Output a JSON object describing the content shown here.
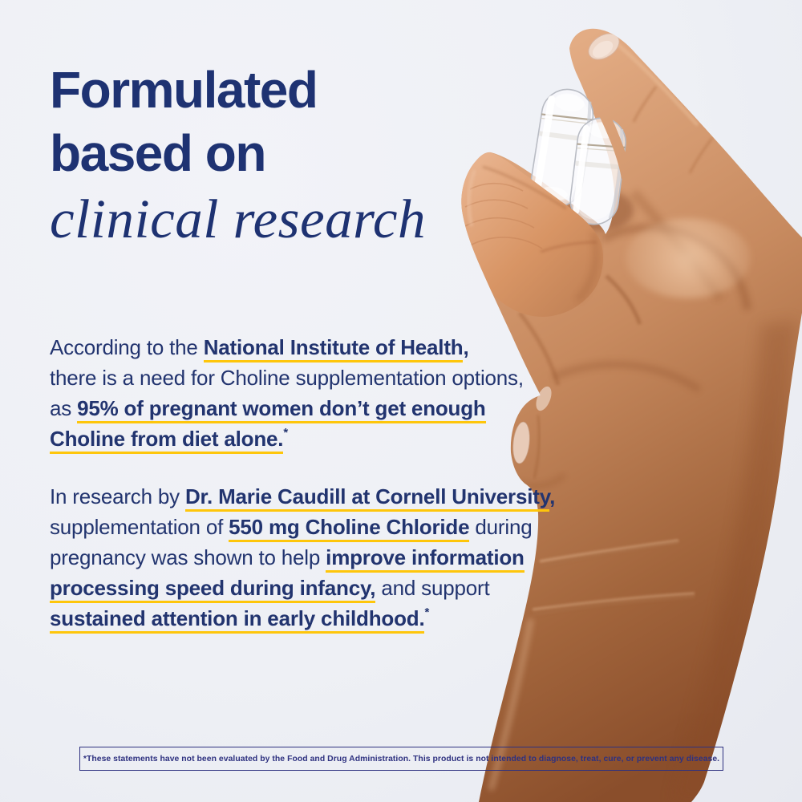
{
  "colors": {
    "background": "#eef0f5",
    "heading_navy": "#1e3272",
    "body_navy": "#22346f",
    "underline_yellow": "#fec60b",
    "disclaimer_navy": "#2e3180",
    "skin_light": "#e3ac84",
    "skin_mid": "#c78a5f",
    "skin_deep": "#a2653c",
    "skin_shadow": "#8a4e2b",
    "nail": "#eed7c8",
    "capsule_outline": "#b9bcc4"
  },
  "heading": {
    "line1": "Formulated",
    "line2": "based on",
    "line3": "clinical research"
  },
  "paragraphs": [
    {
      "lines": [
        [
          {
            "t": "According to the "
          },
          {
            "t": "National Institute of Health",
            "b": true,
            "u": true
          },
          {
            "t": ",",
            "b": true
          }
        ],
        [
          {
            "t": "there is a need for Choline supplementation options,"
          }
        ],
        [
          {
            "t": "as "
          },
          {
            "t": "95% of pregnant women don’t get enough",
            "b": true,
            "u": true
          }
        ],
        [
          {
            "t": "Choline from diet alone.",
            "b": true,
            "u": true
          },
          {
            "t": "*",
            "b": true,
            "sup": true
          }
        ]
      ]
    },
    {
      "lines": [
        [
          {
            "t": "In research by "
          },
          {
            "t": "Dr. Marie Caudill at Cornell University",
            "b": true,
            "u": true
          },
          {
            "t": ",",
            "b": true
          }
        ],
        [
          {
            "t": "supplementation of "
          },
          {
            "t": "550 mg Choline Chloride",
            "b": true,
            "u": true
          },
          {
            "t": " during"
          }
        ],
        [
          {
            "t": "pregnancy was shown to help "
          },
          {
            "t": "improve information",
            "b": true,
            "u": true
          }
        ],
        [
          {
            "t": "processing speed during infancy,",
            "b": true,
            "u": true
          },
          {
            "t": " and support"
          }
        ],
        [
          {
            "t": "sustained attention in early childhood.",
            "b": true,
            "u": true
          },
          {
            "t": "*",
            "b": true,
            "sup": true
          }
        ]
      ]
    }
  ],
  "disclaimer": {
    "text": "*These statements have not been evaluated by the Food and Drug Administration. This product is not intended to diagnose, treat, cure, or prevent any disease."
  },
  "photo": {
    "name": "hand-holding-two-clear-capsules",
    "capsule_count": 2
  }
}
